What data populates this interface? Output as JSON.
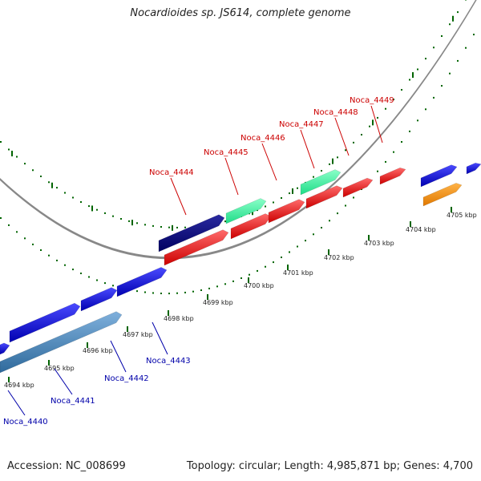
{
  "title": "Nocardioides sp. JS614, complete genome",
  "footer": {
    "accession": "Accession: NC_008699",
    "summary": "Topology: circular; Length: 4,985,871 bp; Genes: 4,700"
  },
  "ticks": [
    "4694 kbp",
    "4695 kbp",
    "4696 kbp",
    "4697 kbp",
    "4698 kbp",
    "4699 kbp",
    "4700 kbp",
    "4701 kbp",
    "4702 kbp",
    "4703 kbp",
    "4704 kbp",
    "4705 kbp"
  ],
  "gene_labels": {
    "forward": [
      "Noca_4444",
      "Noca_4445",
      "Noca_4446",
      "Noca_4447",
      "Noca_4448",
      "Noca_4449"
    ],
    "reverse": [
      "Noca_4440",
      "Noca_4441",
      "Noca_4442",
      "Noca_4443"
    ]
  },
  "colors": {
    "forward_label": "#cc0000",
    "reverse_label": "#0000aa",
    "cds_red": "#ff0000",
    "cds_blue": "#0000ee",
    "cds_navy": "#000080",
    "cds_mint": "#33ff99",
    "cds_orange": "#ff8c00",
    "cds_steel": "#4682b4",
    "backbone": "#888888",
    "tick_green": "#006400"
  }
}
